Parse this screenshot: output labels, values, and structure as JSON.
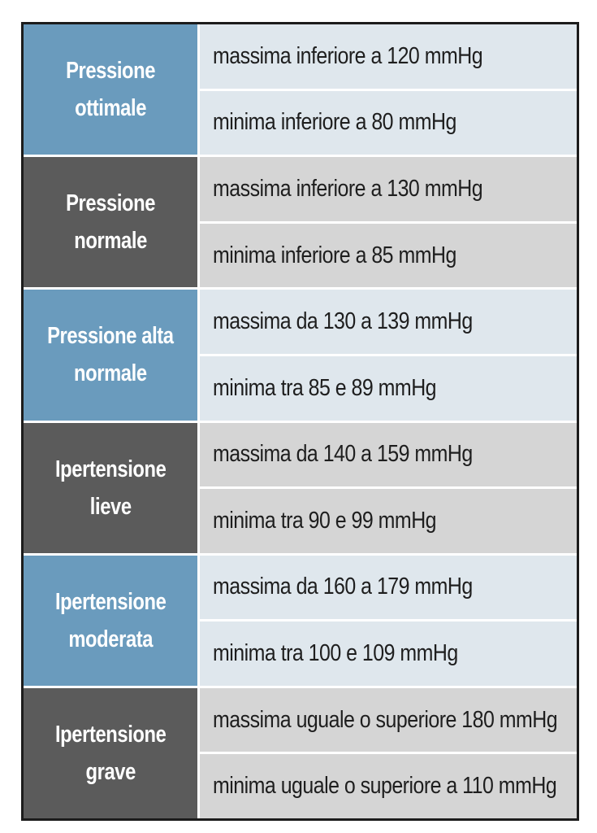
{
  "table": {
    "groups": [
      {
        "category": [
          "Pressione",
          "ottimale"
        ],
        "rows": [
          "massima inferiore a 120 mmHg",
          "minima inferiore a 80 mmHg"
        ],
        "label_color": "#6a9bbd",
        "row_color": "#dfe7ed"
      },
      {
        "category": [
          "Pressione",
          "normale"
        ],
        "rows": [
          "massima inferiore a 130 mmHg",
          "minima inferiore a 85 mmHg"
        ],
        "label_color": "#5b5b5b",
        "row_color": "#d5d5d5"
      },
      {
        "category": [
          "Pressione alta",
          "normale"
        ],
        "rows": [
          "massima da 130 a 139 mmHg",
          "minima tra 85 e 89 mmHg"
        ],
        "label_color": "#6a9bbd",
        "row_color": "#dfe7ed"
      },
      {
        "category": [
          "Ipertensione",
          "lieve"
        ],
        "rows": [
          "massima da 140 a 159 mmHg",
          "minima tra 90 e 99 mmHg"
        ],
        "label_color": "#5b5b5b",
        "row_color": "#d5d5d5"
      },
      {
        "category": [
          "Ipertensione",
          "moderata"
        ],
        "rows": [
          "massima da 160 a 179 mmHg",
          "minima tra 100 e 109 mmHg"
        ],
        "label_color": "#6a9bbd",
        "row_color": "#dfe7ed"
      },
      {
        "category": [
          "Ipertensione",
          "grave"
        ],
        "rows": [
          "massima uguale o superiore 180 mmHg",
          "minima uguale o superiore a 110 mmHg"
        ],
        "label_color": "#5b5b5b",
        "row_color": "#d5d5d5"
      }
    ]
  }
}
